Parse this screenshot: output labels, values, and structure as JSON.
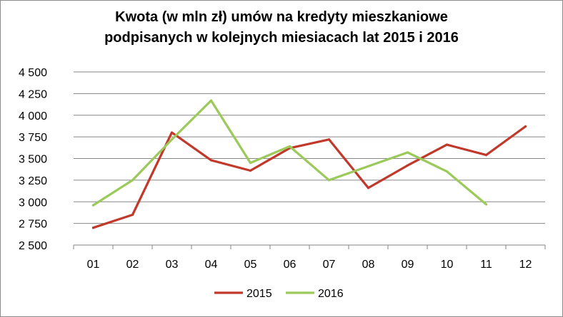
{
  "chart_data": {
    "type": "line",
    "title_lines": [
      "Kwota (w mln zł) umów na kredyty mieszkaniowe",
      "podpisanych  w kolejnych miesiacach  lat 2015 i 2016"
    ],
    "categories": [
      "01",
      "02",
      "03",
      "04",
      "05",
      "06",
      "07",
      "08",
      "09",
      "10",
      "11",
      "12"
    ],
    "y_ticks": [
      "2 500",
      "2 750",
      "3 000",
      "3 250",
      "3 500",
      "3 750",
      "4 000",
      "4 250",
      "4 500"
    ],
    "ylim": [
      2500,
      4500
    ],
    "grid": "horizontal",
    "legend_position": "bottom",
    "series": [
      {
        "name": "2015",
        "color": "#c0392b",
        "values": [
          2700,
          2850,
          3800,
          3480,
          3360,
          3620,
          3720,
          3160,
          3420,
          3660,
          3540,
          3870
        ]
      },
      {
        "name": "2016",
        "color": "#9bca5a",
        "values": [
          2960,
          3250,
          3720,
          4170,
          3450,
          3640,
          3250,
          3410,
          3570,
          3350,
          2970,
          null
        ]
      }
    ]
  }
}
